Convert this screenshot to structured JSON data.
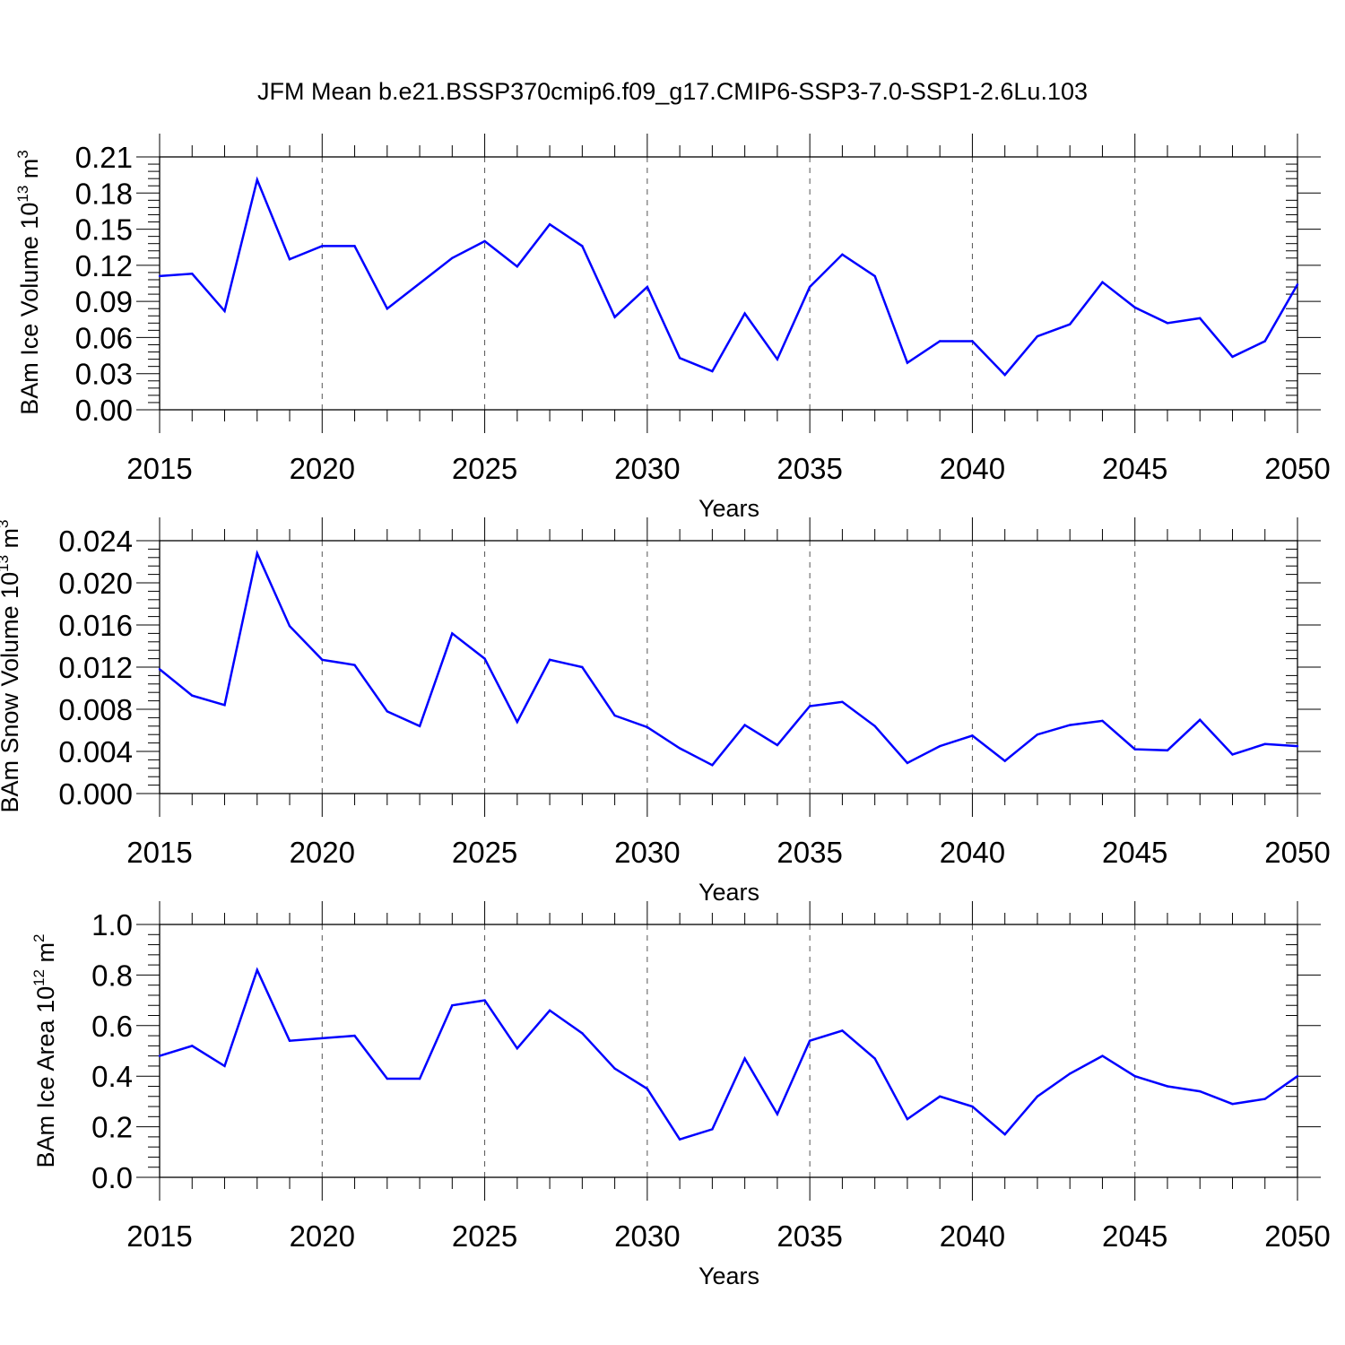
{
  "title": "JFM Mean b.e21.BSSP370cmip6.f09_g17.CMIP6-SSP3-7.0-SSP1-2.6Lu.103",
  "line_color": "#0000ff",
  "chart_data": [
    {
      "type": "line",
      "xlabel": "Years",
      "ylabel_prefix": "BAm Ice Volume 10",
      "ylabel_exp": "13",
      "ylabel_unit": "m",
      "ylabel_unit_exp": "3",
      "xlim": [
        2015,
        2050
      ],
      "ylim": [
        0,
        0.21
      ],
      "xticks": [
        "2015",
        "2020",
        "2025",
        "2030",
        "2035",
        "2040",
        "2045",
        "2050"
      ],
      "yticks": [
        "0.00",
        "0.03",
        "0.06",
        "0.09",
        "0.12",
        "0.15",
        "0.18",
        "0.21"
      ],
      "grid": "vertical dashed at major x ticks",
      "x": [
        2015,
        2016,
        2017,
        2018,
        2019,
        2020,
        2021,
        2022,
        2023,
        2024,
        2025,
        2026,
        2027,
        2028,
        2029,
        2030,
        2031,
        2032,
        2033,
        2034,
        2035,
        2036,
        2037,
        2038,
        2039,
        2040,
        2041,
        2042,
        2043,
        2044,
        2045,
        2046,
        2047,
        2048,
        2049,
        2050
      ],
      "values": [
        0.111,
        0.113,
        0.082,
        0.191,
        0.125,
        0.136,
        0.136,
        0.084,
        0.105,
        0.126,
        0.14,
        0.119,
        0.154,
        0.136,
        0.077,
        0.102,
        0.043,
        0.032,
        0.08,
        0.042,
        0.102,
        0.129,
        0.111,
        0.039,
        0.057,
        0.057,
        0.029,
        0.061,
        0.071,
        0.106,
        0.085,
        0.072,
        0.076,
        0.044,
        0.057,
        0.104
      ]
    },
    {
      "type": "line",
      "xlabel": "Years",
      "ylabel_prefix": "BAm Snow Volume 10",
      "ylabel_exp": "13",
      "ylabel_unit": "m",
      "ylabel_unit_exp": "3",
      "xlim": [
        2015,
        2050
      ],
      "ylim": [
        0,
        0.024
      ],
      "xticks": [
        "2015",
        "2020",
        "2025",
        "2030",
        "2035",
        "2040",
        "2045",
        "2050"
      ],
      "yticks": [
        "0.000",
        "0.004",
        "0.008",
        "0.012",
        "0.016",
        "0.020",
        "0.024"
      ],
      "grid": "vertical dashed at major x ticks",
      "x": [
        2015,
        2016,
        2017,
        2018,
        2019,
        2020,
        2021,
        2022,
        2023,
        2024,
        2025,
        2026,
        2027,
        2028,
        2029,
        2030,
        2031,
        2032,
        2033,
        2034,
        2035,
        2036,
        2037,
        2038,
        2039,
        2040,
        2041,
        2042,
        2043,
        2044,
        2045,
        2046,
        2047,
        2048,
        2049,
        2050
      ],
      "values": [
        0.0118,
        0.0093,
        0.0084,
        0.0228,
        0.0159,
        0.0127,
        0.0122,
        0.0078,
        0.0064,
        0.0152,
        0.0128,
        0.0068,
        0.0127,
        0.012,
        0.0074,
        0.0063,
        0.0043,
        0.0027,
        0.0065,
        0.0046,
        0.0083,
        0.0087,
        0.0064,
        0.0029,
        0.0045,
        0.0055,
        0.0031,
        0.0056,
        0.0065,
        0.0069,
        0.0042,
        0.0041,
        0.007,
        0.0037,
        0.0047,
        0.0045
      ]
    },
    {
      "type": "line",
      "xlabel": "Years",
      "ylabel_prefix": "BAm Ice Area 10",
      "ylabel_exp": "12",
      "ylabel_unit": "m",
      "ylabel_unit_exp": "2",
      "xlim": [
        2015,
        2050
      ],
      "ylim": [
        0,
        1.0
      ],
      "xticks": [
        "2015",
        "2020",
        "2025",
        "2030",
        "2035",
        "2040",
        "2045",
        "2050"
      ],
      "yticks": [
        "0.0",
        "0.2",
        "0.4",
        "0.6",
        "0.8",
        "1.0"
      ],
      "grid": "vertical dashed at major x ticks",
      "x": [
        2015,
        2016,
        2017,
        2018,
        2019,
        2020,
        2021,
        2022,
        2023,
        2024,
        2025,
        2026,
        2027,
        2028,
        2029,
        2030,
        2031,
        2032,
        2033,
        2034,
        2035,
        2036,
        2037,
        2038,
        2039,
        2040,
        2041,
        2042,
        2043,
        2044,
        2045,
        2046,
        2047,
        2048,
        2049,
        2050
      ],
      "values": [
        0.48,
        0.52,
        0.44,
        0.82,
        0.54,
        0.55,
        0.56,
        0.39,
        0.39,
        0.68,
        0.7,
        0.51,
        0.66,
        0.57,
        0.43,
        0.35,
        0.15,
        0.19,
        0.47,
        0.25,
        0.54,
        0.58,
        0.47,
        0.23,
        0.32,
        0.28,
        0.17,
        0.32,
        0.41,
        0.48,
        0.4,
        0.36,
        0.34,
        0.29,
        0.31,
        0.4
      ]
    }
  ]
}
